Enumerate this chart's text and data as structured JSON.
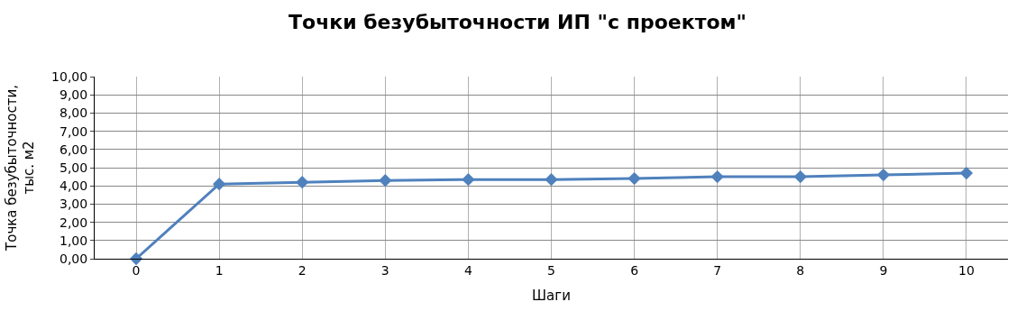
{
  "chart_data": {
    "type": "line",
    "title": "Точки безубыточности ИП \"с проектом\"",
    "xlabel": "Шаги",
    "ylabel": "Точка безубыточности,\nтыс. м2",
    "categories": [
      "0",
      "1",
      "2",
      "3",
      "4",
      "5",
      "6",
      "7",
      "8",
      "9",
      "10"
    ],
    "series": [
      {
        "color": "#4f81bd",
        "values": [
          0,
          4.1,
          4.2,
          4.3,
          4.35,
          4.35,
          4.4,
          4.5,
          4.5,
          4.6,
          4.7
        ]
      }
    ],
    "ylim": [
      0,
      10
    ],
    "yticks": [
      {
        "value": 0,
        "label": "0,00"
      },
      {
        "value": 1,
        "label": "1,00"
      },
      {
        "value": 2,
        "label": "2,00"
      },
      {
        "value": 3,
        "label": "3,00"
      },
      {
        "value": 4,
        "label": "4,00"
      },
      {
        "value": 5,
        "label": "5,00"
      },
      {
        "value": 6,
        "label": "6,00"
      },
      {
        "value": 7,
        "label": "7,00"
      },
      {
        "value": 8,
        "label": "8,00"
      },
      {
        "value": 9,
        "label": "9,00"
      },
      {
        "value": 10,
        "label": "10,00"
      }
    ],
    "grid": true,
    "marker": "diamond",
    "line_style": "solid"
  }
}
